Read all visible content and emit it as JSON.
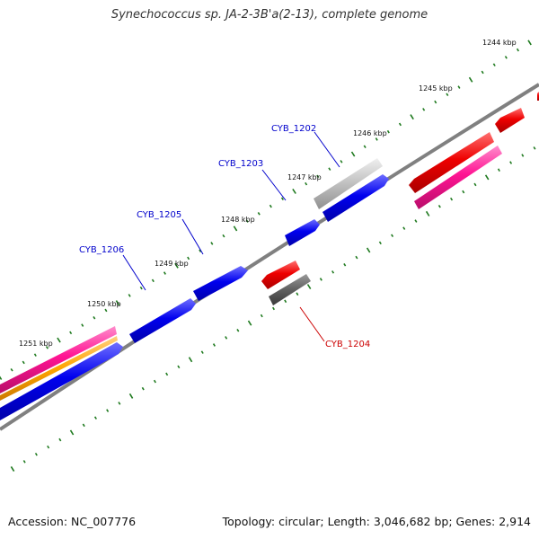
{
  "title": "Synechococcus sp. JA-2-3B'a(2-13), complete genome",
  "footer": {
    "accession": "Accession: NC_007776",
    "summary": "Topology: circular; Length: 3,046,682 bp; Genes: 2,914"
  },
  "colors": {
    "backbone": "#808080",
    "tick": "#1f7a1f",
    "forward_gene": "#0000ee",
    "reverse_gene": "#ee0000",
    "pseudo_gene": "#c0c0c0",
    "rna": "#ff1493",
    "other": "#ffa500",
    "dark_gray": "#606060",
    "label_blue": "#0000cc",
    "label_red": "#cc0000"
  },
  "kbp_labels": [
    "1244 kbp",
    "1245 kbp",
    "1246 kbp",
    "1247 kbp",
    "1248 kbp",
    "1249 kbp",
    "1250 kbp",
    "1251 kbp"
  ],
  "gene_labels": {
    "cyb1202": "CYB_1202",
    "cyb1203": "CYB_1203",
    "cyb1205": "CYB_1205",
    "cyb1206": "CYB_1206",
    "cyb1204": "CYB_1204"
  }
}
